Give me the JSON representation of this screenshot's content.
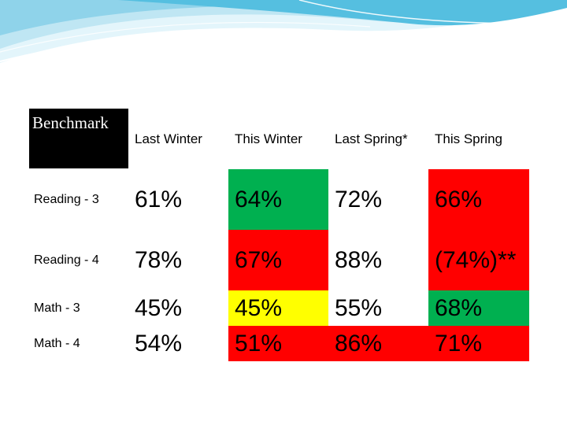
{
  "header": {
    "benchmark": "Benchmark",
    "columns": [
      "Last Winter",
      "This Winter",
      "Last Spring*",
      "This Spring"
    ]
  },
  "rows": [
    {
      "label": "Reading - 3",
      "values": [
        "61%",
        "64%",
        "72%",
        "66%"
      ]
    },
    {
      "label": "Reading - 4",
      "values": [
        "78%",
        "67%",
        "88%",
        "(74%)**"
      ]
    },
    {
      "label": "Math - 3",
      "values": [
        "45%",
        "45%",
        "55%",
        "68%"
      ]
    },
    {
      "label": "Math - 4",
      "values": [
        "54%",
        "51%",
        "86%",
        "71%"
      ]
    }
  ],
  "colors": {
    "green": "#00b050",
    "red": "#ff0000",
    "yellow": "#ffff00",
    "wave_light": "#cdeef8",
    "wave_dark": "#3fb4d8"
  }
}
